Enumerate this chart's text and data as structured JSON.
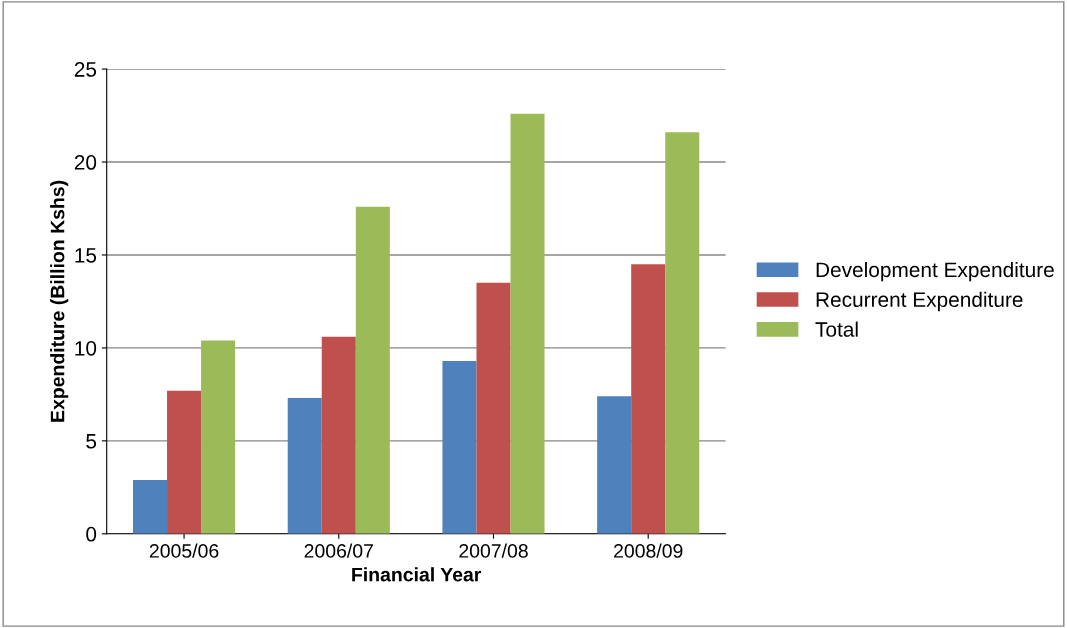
{
  "chart_data": {
    "type": "bar",
    "xlabel": "Financial Year",
    "ylabel": "Expenditure (Billion Kshs)",
    "categories": [
      "2005/06",
      "2006/07",
      "2007/08",
      "2008/09"
    ],
    "series": [
      {
        "name": "Development Expenditure",
        "color": "#4f81bd",
        "values": [
          2.9,
          7.3,
          9.3,
          7.4
        ]
      },
      {
        "name": "Recurrent Expenditure",
        "color": "#c0504d",
        "values": [
          7.7,
          10.6,
          13.5,
          14.5
        ]
      },
      {
        "name": "Total",
        "color": "#9bbb59",
        "values": [
          10.4,
          17.6,
          22.6,
          21.6
        ]
      }
    ],
    "ylim": [
      0,
      25
    ],
    "yticks": [
      0,
      5,
      10,
      15,
      20,
      25
    ],
    "grid": "y",
    "legend": "right"
  }
}
